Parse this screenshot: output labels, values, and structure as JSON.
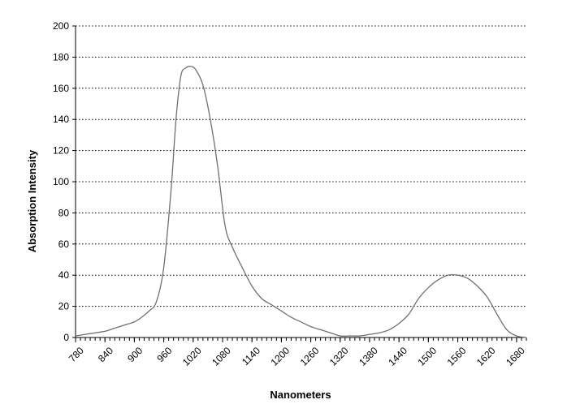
{
  "chart_data": {
    "type": "line",
    "title": "",
    "xlabel": "Nanometers",
    "ylabel": "Absorption Intensity",
    "xlim": [
      780,
      1700
    ],
    "ylim": [
      0,
      200
    ],
    "x_ticks": [
      780,
      840,
      900,
      960,
      1020,
      1080,
      1140,
      1200,
      1260,
      1320,
      1380,
      1440,
      1500,
      1560,
      1620,
      1680
    ],
    "y_ticks": [
      0,
      20,
      40,
      60,
      80,
      100,
      120,
      140,
      160,
      180,
      200
    ],
    "x_minor_step": 10,
    "grid": "horizontal-dotted",
    "legend": "none",
    "line_color": "#707070",
    "series": [
      {
        "x": [
          780,
          800,
          820,
          840,
          860,
          880,
          900,
          915,
          930,
          945,
          960,
          975,
          985,
          995,
          1005,
          1015,
          1025,
          1040,
          1055,
          1070,
          1085,
          1100,
          1120,
          1140,
          1160,
          1180,
          1200,
          1220,
          1240,
          1260,
          1280,
          1300,
          1320,
          1340,
          1360,
          1380,
          1400,
          1420,
          1440,
          1460,
          1480,
          1500,
          1520,
          1540,
          1560,
          1580,
          1600,
          1620,
          1640,
          1660,
          1680,
          1700
        ],
        "y": [
          1,
          2,
          3,
          4,
          6,
          8,
          10,
          13,
          17,
          23,
          45,
          95,
          140,
          168,
          173,
          174,
          172,
          162,
          140,
          110,
          72,
          58,
          45,
          33,
          25,
          21,
          17,
          13,
          10,
          7,
          5,
          3,
          1,
          1,
          1,
          2,
          3,
          5,
          9,
          15,
          25,
          32,
          37,
          40,
          40,
          38,
          33,
          26,
          15,
          5,
          1,
          0
        ]
      }
    ]
  }
}
